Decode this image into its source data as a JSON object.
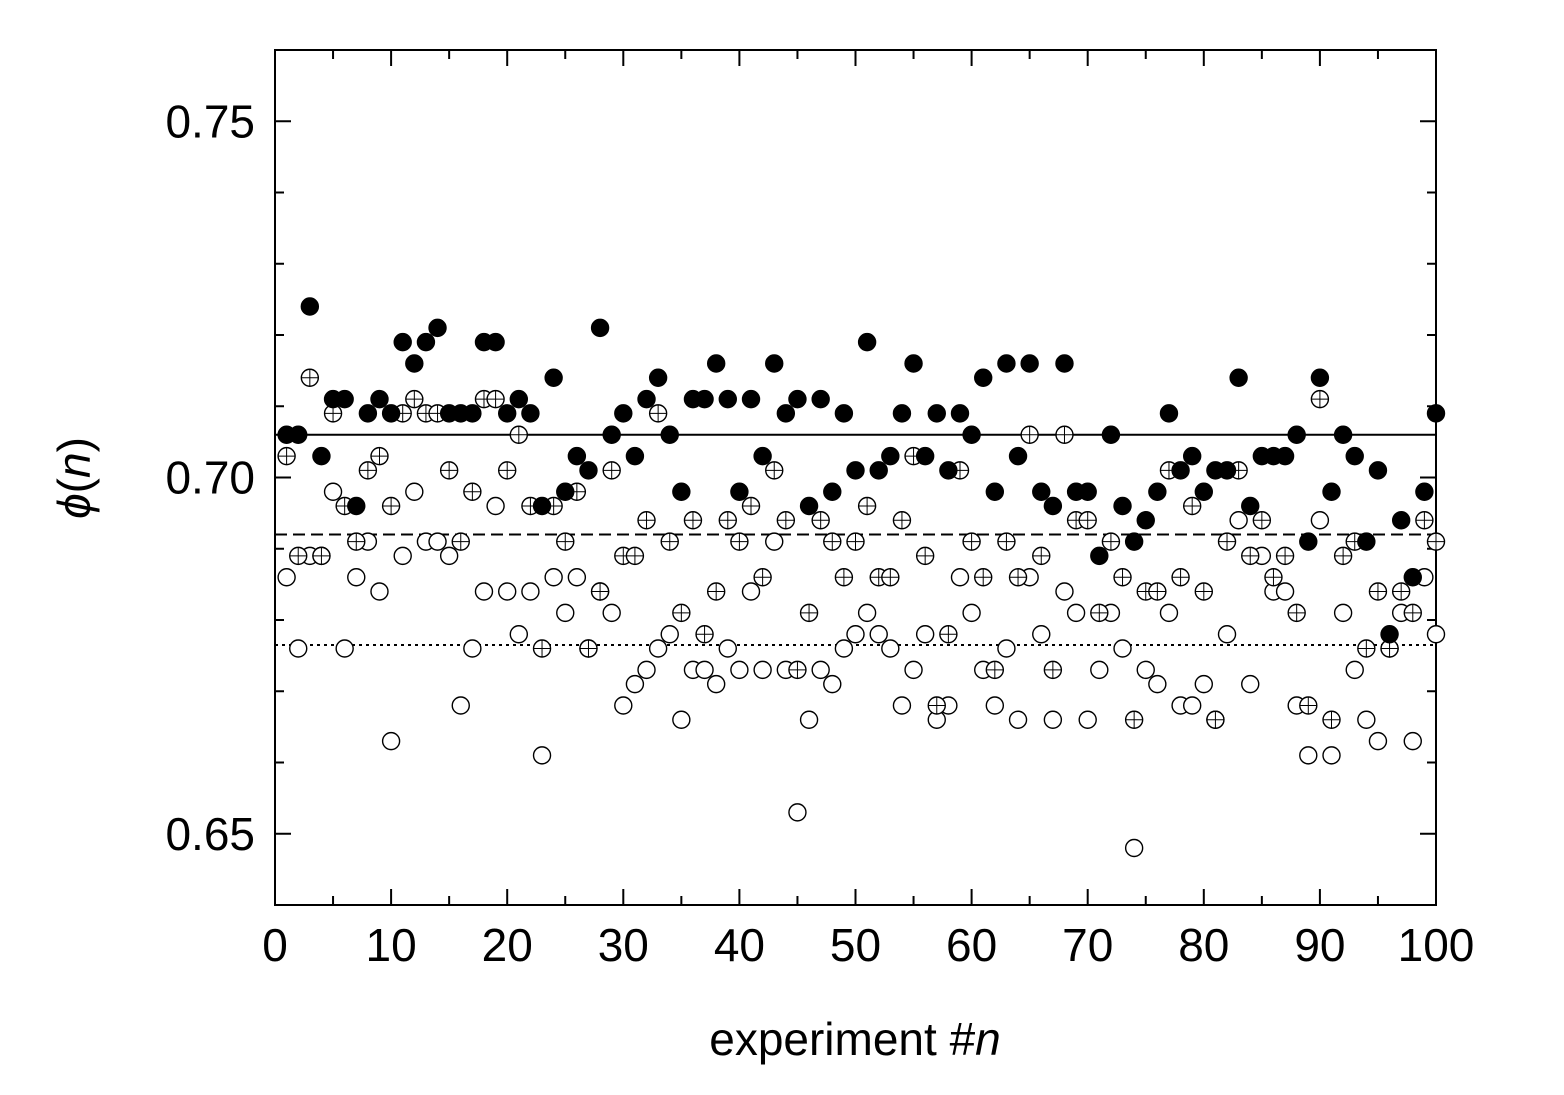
{
  "chart_data": {
    "type": "scatter",
    "title": "",
    "xlabel": "experiment #",
    "xlabel_var": "n",
    "ylabel_sym": "ϕ",
    "ylabel_open": "(",
    "ylabel_var": "n",
    "ylabel_close": ")",
    "xlim": [
      0,
      100
    ],
    "ylim": [
      0.64,
      0.76
    ],
    "x_ticks": [
      "0",
      "10",
      "20",
      "30",
      "40",
      "50",
      "60",
      "70",
      "80",
      "90",
      "100"
    ],
    "y_ticks": [
      "0.65",
      "0.70",
      "0.75"
    ],
    "grid": false,
    "legend": "none",
    "colors": {
      "marker_stroke": "#000000",
      "filled_marker": "#000000",
      "open_marker": "#ffffff"
    },
    "reference_lines": [
      {
        "y": 0.706,
        "style": "solid"
      },
      {
        "y": 0.692,
        "style": "dashed"
      },
      {
        "y": 0.6765,
        "style": "dotted"
      }
    ],
    "series": [
      {
        "marker": "filled-circle",
        "x": [
          1,
          2,
          3,
          4,
          5,
          6,
          7,
          8,
          9,
          10,
          11,
          12,
          13,
          14,
          15,
          16,
          17,
          18,
          19,
          20,
          21,
          22,
          23,
          24,
          25,
          26,
          27,
          28,
          29,
          30,
          31,
          32,
          33,
          34,
          35,
          36,
          37,
          38,
          39,
          40,
          41,
          42,
          43,
          44,
          45,
          46,
          47,
          48,
          49,
          50,
          51,
          52,
          53,
          54,
          55,
          56,
          57,
          58,
          59,
          60,
          61,
          62,
          63,
          64,
          65,
          66,
          67,
          68,
          69,
          70,
          71,
          72,
          73,
          74,
          75,
          76,
          77,
          78,
          79,
          80,
          81,
          82,
          83,
          84,
          85,
          86,
          87,
          88,
          89,
          90,
          91,
          92,
          93,
          94,
          95,
          96,
          97,
          98,
          99,
          100
        ],
        "y": [
          0.706,
          0.706,
          0.724,
          0.703,
          0.711,
          0.711,
          0.696,
          0.709,
          0.711,
          0.709,
          0.719,
          0.716,
          0.719,
          0.721,
          0.709,
          0.709,
          0.709,
          0.719,
          0.719,
          0.709,
          0.711,
          0.709,
          0.696,
          0.714,
          0.698,
          0.703,
          0.701,
          0.721,
          0.706,
          0.709,
          0.703,
          0.711,
          0.714,
          0.706,
          0.698,
          0.711,
          0.711,
          0.716,
          0.711,
          0.698,
          0.711,
          0.703,
          0.716,
          0.709,
          0.711,
          0.696,
          0.711,
          0.698,
          0.709,
          0.701,
          0.719,
          0.701,
          0.703,
          0.709,
          0.716,
          0.703,
          0.709,
          0.701,
          0.709,
          0.706,
          0.714,
          0.698,
          0.716,
          0.703,
          0.716,
          0.698,
          0.696,
          0.716,
          0.698,
          0.698,
          0.689,
          0.706,
          0.696,
          0.691,
          0.694,
          0.698,
          0.709,
          0.701,
          0.703,
          0.698,
          0.701,
          0.701,
          0.714,
          0.696,
          0.703,
          0.703,
          0.703,
          0.706,
          0.691,
          0.714,
          0.698,
          0.706,
          0.703,
          0.691,
          0.701,
          0.678,
          0.694,
          0.686,
          0.698,
          0.709
        ]
      },
      {
        "marker": "crossed-circle",
        "x": [
          1,
          2,
          3,
          4,
          5,
          6,
          7,
          8,
          9,
          10,
          11,
          12,
          13,
          14,
          15,
          16,
          17,
          18,
          19,
          20,
          21,
          22,
          23,
          24,
          25,
          26,
          27,
          28,
          29,
          30,
          31,
          32,
          33,
          34,
          35,
          36,
          37,
          38,
          39,
          40,
          41,
          42,
          43,
          44,
          45,
          46,
          47,
          48,
          49,
          50,
          51,
          52,
          53,
          54,
          55,
          56,
          57,
          58,
          59,
          60,
          61,
          62,
          63,
          64,
          65,
          66,
          67,
          68,
          69,
          70,
          71,
          72,
          73,
          74,
          75,
          76,
          77,
          78,
          79,
          80,
          81,
          82,
          83,
          84,
          85,
          86,
          87,
          88,
          89,
          90,
          91,
          92,
          93,
          94,
          95,
          96,
          97,
          98,
          99,
          100
        ],
        "y": [
          0.703,
          0.689,
          0.714,
          0.689,
          0.709,
          0.696,
          0.691,
          0.701,
          0.703,
          0.696,
          0.709,
          0.711,
          0.709,
          0.709,
          0.701,
          0.691,
          0.698,
          0.711,
          0.711,
          0.701,
          0.706,
          0.696,
          0.676,
          0.696,
          0.691,
          0.698,
          0.676,
          0.684,
          0.701,
          0.689,
          0.689,
          0.694,
          0.709,
          0.691,
          0.681,
          0.694,
          0.678,
          0.684,
          0.694,
          0.691,
          0.696,
          0.686,
          0.701,
          0.694,
          0.673,
          0.681,
          0.694,
          0.691,
          0.686,
          0.691,
          0.696,
          0.686,
          0.686,
          0.694,
          0.703,
          0.689,
          0.668,
          0.678,
          0.701,
          0.691,
          0.686,
          0.673,
          0.691,
          0.686,
          0.706,
          0.689,
          0.673,
          0.706,
          0.694,
          0.694,
          0.681,
          0.691,
          0.686,
          0.666,
          0.684,
          0.684,
          0.701,
          0.686,
          0.696,
          0.684,
          0.666,
          0.691,
          0.701,
          0.689,
          0.694,
          0.686,
          0.689,
          0.681,
          0.668,
          0.711,
          0.666,
          0.689,
          0.691,
          0.676,
          0.684,
          0.676,
          0.684,
          0.681,
          0.694,
          0.691
        ]
      },
      {
        "marker": "open-circle",
        "x": [
          1,
          2,
          3,
          4,
          5,
          6,
          7,
          8,
          9,
          10,
          11,
          12,
          13,
          14,
          15,
          16,
          17,
          18,
          19,
          20,
          21,
          22,
          23,
          24,
          25,
          26,
          27,
          28,
          29,
          30,
          31,
          32,
          33,
          34,
          35,
          36,
          37,
          38,
          39,
          40,
          41,
          42,
          43,
          44,
          45,
          46,
          47,
          48,
          49,
          50,
          51,
          52,
          53,
          54,
          55,
          56,
          57,
          58,
          59,
          60,
          61,
          62,
          63,
          64,
          65,
          66,
          67,
          68,
          69,
          70,
          71,
          72,
          73,
          74,
          75,
          76,
          77,
          78,
          79,
          80,
          81,
          82,
          83,
          84,
          85,
          86,
          87,
          88,
          89,
          90,
          91,
          92,
          93,
          94,
          95,
          96,
          97,
          98,
          99,
          100
        ],
        "y": [
          0.686,
          0.676,
          0.689,
          0.689,
          0.698,
          0.676,
          0.686,
          0.691,
          0.684,
          0.663,
          0.689,
          0.698,
          0.691,
          0.691,
          0.689,
          0.668,
          0.676,
          0.684,
          0.696,
          0.684,
          0.678,
          0.684,
          0.661,
          0.686,
          0.681,
          0.686,
          0.676,
          0.684,
          0.681,
          0.668,
          0.671,
          0.673,
          0.676,
          0.678,
          0.666,
          0.673,
          0.673,
          0.671,
          0.676,
          0.673,
          0.684,
          0.673,
          0.691,
          0.673,
          0.653,
          0.666,
          0.673,
          0.671,
          0.676,
          0.678,
          0.681,
          0.678,
          0.676,
          0.668,
          0.673,
          0.678,
          0.666,
          0.668,
          0.686,
          0.681,
          0.673,
          0.668,
          0.676,
          0.666,
          0.686,
          0.678,
          0.666,
          0.684,
          0.681,
          0.666,
          0.673,
          0.681,
          0.676,
          0.648,
          0.673,
          0.671,
          0.681,
          0.668,
          0.668,
          0.671,
          0.666,
          0.678,
          0.694,
          0.671,
          0.689,
          0.684,
          0.684,
          0.668,
          0.661,
          0.694,
          0.661,
          0.681,
          0.673,
          0.666,
          0.663,
          0.676,
          0.681,
          0.663,
          0.686,
          0.678
        ]
      }
    ]
  }
}
